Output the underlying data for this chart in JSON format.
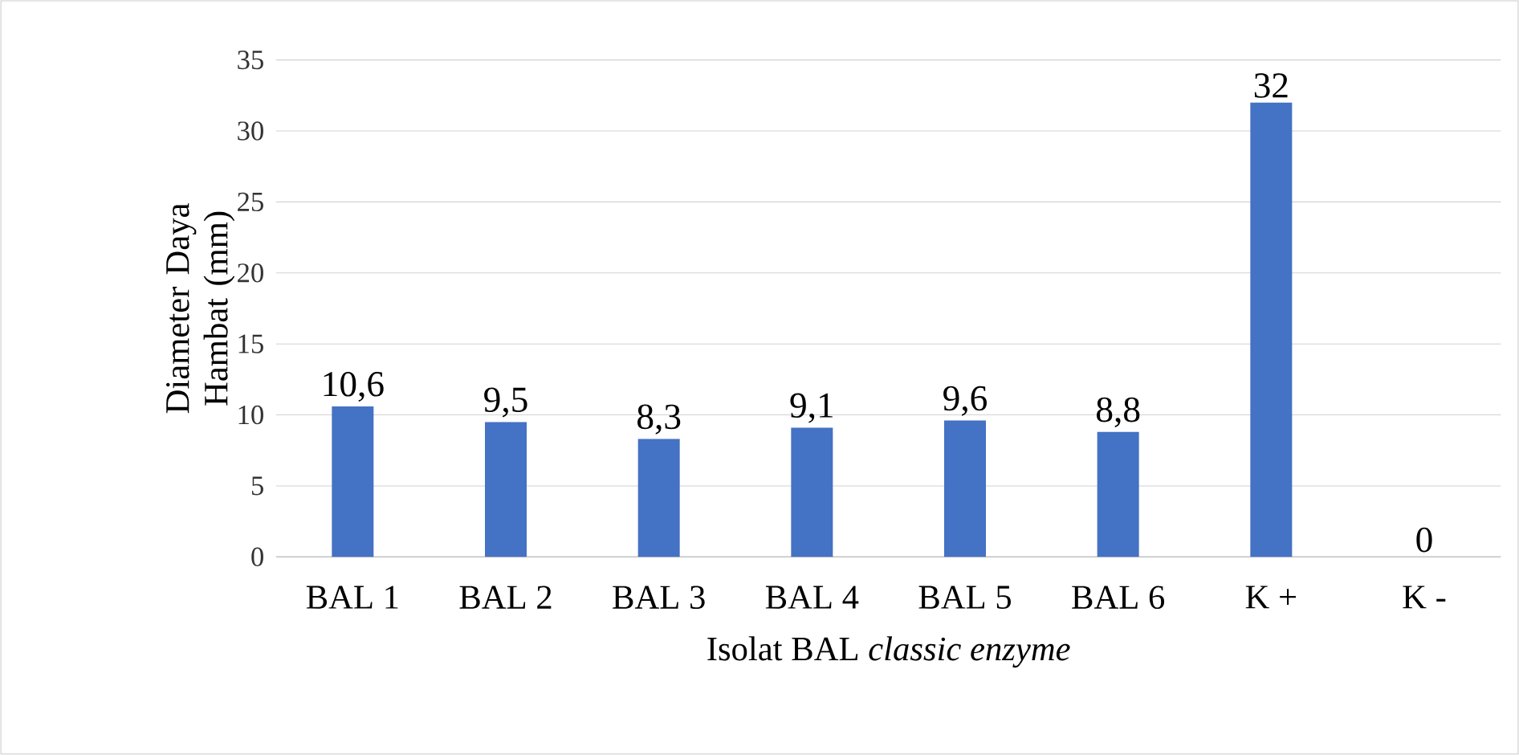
{
  "chart_data": {
    "type": "bar",
    "xlabel": "Isolat BAL *classic enzyme*",
    "ylabel": "Diameter Daya Hambat (mm)",
    "categories": [
      "BAL 1",
      "BAL 2",
      "BAL 3",
      "BAL 4",
      "BAL 5",
      "BAL 6",
      "K +",
      "K -"
    ],
    "values": [
      10.6,
      9.5,
      8.3,
      9.1,
      9.6,
      8.8,
      32,
      0
    ],
    "value_labels": [
      "10,6",
      "9,5",
      "8,3",
      "9,1",
      "9,6",
      "8,8",
      "32",
      "0"
    ],
    "color": "#4472c4",
    "ylim": [
      0,
      35
    ],
    "yticks": [
      0,
      5,
      10,
      15,
      20,
      25,
      30,
      35
    ],
    "grid": "y"
  }
}
